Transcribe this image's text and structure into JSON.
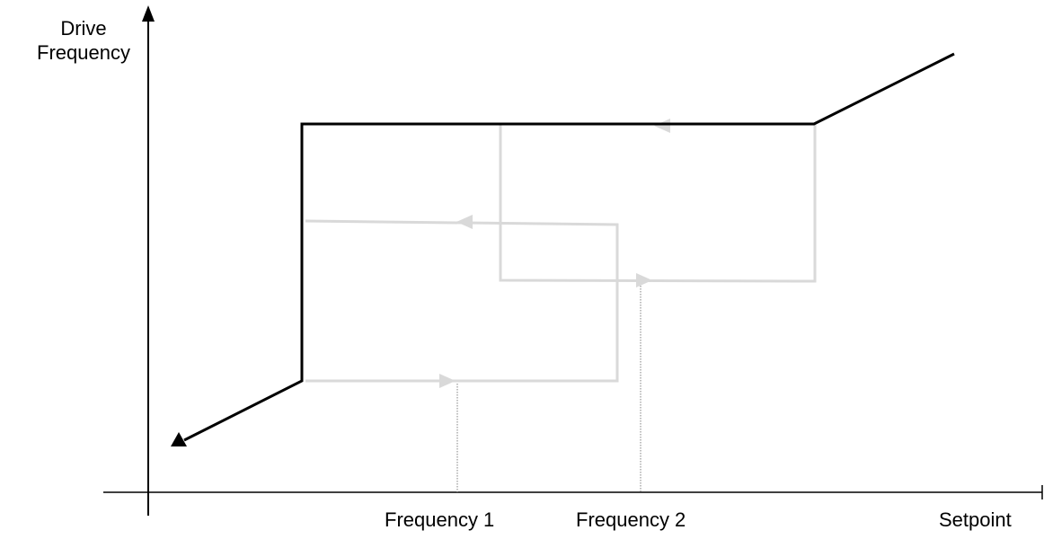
{
  "labels": {
    "y_axis_line1": "Drive",
    "y_axis_line2": "Frequency",
    "x_axis": "Setpoint",
    "frequency_1": "Frequency 1",
    "frequency_2": "Frequency 2"
  },
  "colors": {
    "axis": "#000000",
    "main_curve": "#000000",
    "skip_band_paths": "#d9d9d9",
    "guide_lines": "#808080",
    "background": "#ffffff"
  }
}
